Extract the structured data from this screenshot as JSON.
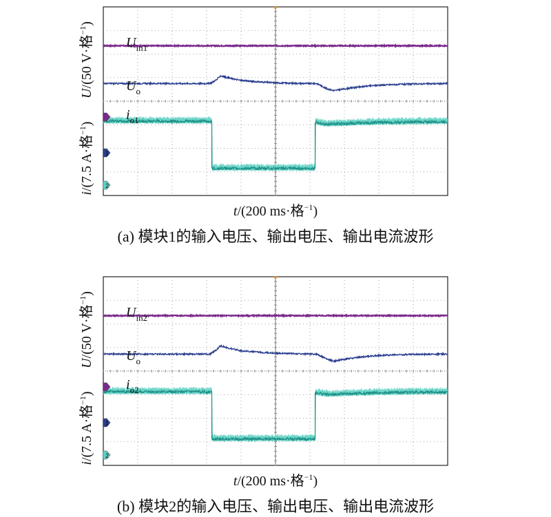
{
  "figure": {
    "panels": [
      {
        "id": "a",
        "caption": "(a) 模块1的输入电压、输出电压、输出电流波形",
        "ylabel_top": {
          "prefix": "U",
          "text": "/(50 V·格",
          "sup": "−1",
          "suffix": ")"
        },
        "ylabel_bottom": {
          "prefix": "i",
          "text": "/(7.5 A·格",
          "sup": "−1",
          "suffix": ")"
        },
        "xlabel": {
          "prefix": "t",
          "text": "/(200 ms·格",
          "sup": "−1",
          "suffix": ")"
        },
        "trace_labels": [
          {
            "base": "U",
            "sub": "in1"
          },
          {
            "base": "U",
            "sub": "o"
          },
          {
            "base": "i",
            "sub": "o1"
          }
        ],
        "channel_markers": [
          "",
          "1",
          "2"
        ]
      },
      {
        "id": "b",
        "caption": "(b) 模块2的输入电压、输出电压、输出电流波形",
        "ylabel_top": {
          "prefix": "U",
          "text": "/(50 V·格",
          "sup": "−1",
          "suffix": ")"
        },
        "ylabel_bottom": {
          "prefix": "i",
          "text": "/(7.5 A·格",
          "sup": "−1",
          "suffix": ")"
        },
        "xlabel": {
          "prefix": "t",
          "text": "/(200 ms·格",
          "sup": "−1",
          "suffix": ")"
        },
        "trace_labels": [
          {
            "base": "U",
            "sub": "in2"
          },
          {
            "base": "U",
            "sub": "o"
          },
          {
            "base": "i",
            "sub": "o2"
          }
        ],
        "channel_markers": [
          "",
          "1",
          "2"
        ]
      }
    ]
  },
  "colors": {
    "input_voltage": "#7b2a8c",
    "output_voltage": "#2b3f8f",
    "output_current": "#1e8f86",
    "current_fill": "#5fd1c4",
    "grid": "#888888",
    "frame": "#222222",
    "trigger": "#d98a2a"
  },
  "chart_data": [
    {
      "type": "line",
      "panel": "a",
      "grid": true,
      "x_divisions": 10,
      "y_divisions": 8,
      "x": {
        "unit": "ms",
        "per_div": 200,
        "range": [
          0,
          2000
        ]
      },
      "series": [
        {
          "name": "Uin1",
          "unit": "div",
          "points": [
            [
              0,
              6.35
            ],
            [
              2000,
              6.35
            ]
          ]
        },
        {
          "name": "Uo",
          "unit": "div",
          "points": [
            [
              0,
              4.75
            ],
            [
              620,
              4.75
            ],
            [
              660,
              4.92
            ],
            [
              680,
              5.08
            ],
            [
              720,
              5.0
            ],
            [
              800,
              4.88
            ],
            [
              900,
              4.82
            ],
            [
              1000,
              4.78
            ],
            [
              1100,
              4.76
            ],
            [
              1200,
              4.75
            ],
            [
              1240,
              4.75
            ],
            [
              1260,
              4.68
            ],
            [
              1300,
              4.52
            ],
            [
              1340,
              4.45
            ],
            [
              1400,
              4.52
            ],
            [
              1500,
              4.62
            ],
            [
              1600,
              4.68
            ],
            [
              1700,
              4.71
            ],
            [
              1800,
              4.73
            ],
            [
              2000,
              4.75
            ]
          ]
        },
        {
          "name": "io1",
          "unit": "div",
          "points": [
            [
              0,
              3.15
            ],
            [
              630,
              3.15
            ],
            [
              630,
              1.15
            ],
            [
              1230,
              1.15
            ],
            [
              1230,
              3.1
            ],
            [
              1300,
              3.02
            ],
            [
              1400,
              3.05
            ],
            [
              1600,
              3.1
            ],
            [
              2000,
              3.13
            ]
          ]
        }
      ]
    },
    {
      "type": "line",
      "panel": "b",
      "grid": true,
      "x_divisions": 10,
      "y_divisions": 8,
      "x": {
        "unit": "ms",
        "per_div": 200,
        "range": [
          0,
          2000
        ]
      },
      "series": [
        {
          "name": "Uin2",
          "unit": "div",
          "points": [
            [
              0,
              6.35
            ],
            [
              2000,
              6.35
            ]
          ]
        },
        {
          "name": "Uo",
          "unit": "div",
          "points": [
            [
              0,
              4.72
            ],
            [
              620,
              4.72
            ],
            [
              660,
              4.92
            ],
            [
              680,
              5.08
            ],
            [
              720,
              4.98
            ],
            [
              800,
              4.86
            ],
            [
              900,
              4.8
            ],
            [
              1000,
              4.76
            ],
            [
              1100,
              4.74
            ],
            [
              1200,
              4.72
            ],
            [
              1240,
              4.72
            ],
            [
              1260,
              4.65
            ],
            [
              1300,
              4.5
            ],
            [
              1340,
              4.42
            ],
            [
              1400,
              4.5
            ],
            [
              1500,
              4.6
            ],
            [
              1600,
              4.66
            ],
            [
              1700,
              4.69
            ],
            [
              1800,
              4.71
            ],
            [
              2000,
              4.72
            ]
          ]
        },
        {
          "name": "io2",
          "unit": "div",
          "points": [
            [
              0,
              3.12
            ],
            [
              630,
              3.12
            ],
            [
              630,
              1.12
            ],
            [
              1230,
              1.12
            ],
            [
              1230,
              3.08
            ],
            [
              1300,
              3.0
            ],
            [
              1400,
              3.03
            ],
            [
              1600,
              3.08
            ],
            [
              2000,
              3.11
            ]
          ]
        }
      ]
    }
  ]
}
